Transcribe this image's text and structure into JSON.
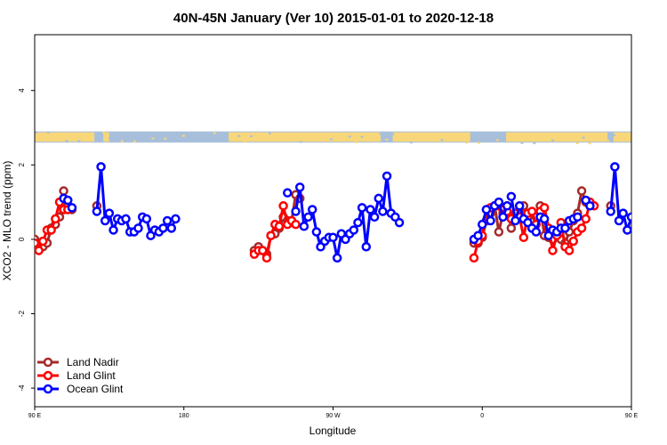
{
  "chart_data": {
    "type": "line",
    "title": "40N-45N January (Ver 10)   2015-01-01 to 2020-12-18",
    "xlabel": "Longitude",
    "ylabel": "XCO2 - MLO trend (ppm)",
    "xlim": [
      90,
      450
    ],
    "ylim": [
      -4.5,
      5.5
    ],
    "x_ticks": [
      {
        "value": 90,
        "label": "90 E"
      },
      {
        "value": 180,
        "label": "180"
      },
      {
        "value": 270,
        "label": "90 W"
      },
      {
        "value": 360,
        "label": "0"
      },
      {
        "value": 450,
        "label": "90 E"
      },
      {
        "value": 540,
        "label": "180"
      }
    ],
    "y_ticks": [
      {
        "value": -4,
        "label": "-4"
      },
      {
        "value": -2,
        "label": "-2"
      },
      {
        "value": 0,
        "label": "0"
      },
      {
        "value": 2,
        "label": "2"
      },
      {
        "value": 4,
        "label": "4"
      }
    ],
    "grid": false,
    "legend_position": "bottom-left",
    "land_strip": {
      "y_range": [
        2.6,
        2.9
      ],
      "ocean_color": "#a7bfdb",
      "land_color": "#f8d77a"
    },
    "series": [
      {
        "name": "Land Nadir",
        "color": "#a52a2a",
        "segments": [
          [
            [
              90,
              0
            ],
            [
              92.5,
              -0.1
            ],
            [
              95,
              -0.2
            ],
            [
              97.5,
              -0.1
            ],
            [
              100,
              0.3
            ],
            [
              102.5,
              0.4
            ],
            [
              105,
              0.6
            ],
            [
              107.5,
              1.3
            ],
            [
              110,
              0.9
            ],
            [
              112.5,
              0.8
            ]
          ],
          [
            [
              127.5,
              0.9
            ]
          ],
          [
            [
              222.5,
              -0.3
            ],
            [
              225,
              -0.2
            ],
            [
              227.5,
              -0.3
            ],
            [
              230,
              -0.4
            ],
            [
              232.5,
              0.1
            ],
            [
              235,
              0.15
            ],
            [
              237.5,
              0.3
            ],
            [
              240,
              0.6
            ],
            [
              242.5,
              0.5
            ],
            [
              245,
              0.5
            ],
            [
              247.5,
              1.2
            ],
            [
              250,
              1.1
            ]
          ],
          [
            [
              355,
              -0.1
            ],
            [
              357.5,
              -0.1
            ],
            [
              360,
              0.05
            ],
            [
              362.5,
              0.5
            ],
            [
              365,
              0.7
            ],
            [
              367.5,
              0.9
            ],
            [
              370,
              0.2
            ],
            [
              372.5,
              0.7
            ],
            [
              375,
              0.9
            ],
            [
              377.5,
              0.3
            ],
            [
              380,
              0.6
            ],
            [
              382.5,
              0.8
            ],
            [
              385,
              0.9
            ],
            [
              387.5,
              0.6
            ],
            [
              390,
              0.3
            ],
            [
              392.5,
              0.6
            ],
            [
              395,
              0.9
            ],
            [
              397.5,
              0.1
            ],
            [
              400,
              0.05
            ],
            [
              402.5,
              0
            ],
            [
              405,
              0.2
            ],
            [
              407.5,
              0
            ],
            [
              410,
              -0.1
            ],
            [
              412.5,
              0.2
            ],
            [
              415,
              0.5
            ],
            [
              417.5,
              0.7
            ],
            [
              420,
              1.3
            ],
            [
              422.5,
              1.0
            ],
            [
              425,
              0.9
            ]
          ],
          [
            [
              437.5,
              0.9
            ]
          ]
        ]
      },
      {
        "name": "Land Glint",
        "color": "#ff0000",
        "segments": [
          [
            [
              90,
              -0.1
            ],
            [
              92.5,
              -0.3
            ],
            [
              95,
              -0.05
            ],
            [
              97.5,
              0.25
            ],
            [
              100,
              0.25
            ],
            [
              102.5,
              0.55
            ],
            [
              105,
              1.0
            ],
            [
              107.5,
              0.8
            ],
            [
              110,
              0.8
            ]
          ],
          [
            [
              222.5,
              -0.4
            ],
            [
              225,
              -0.3
            ],
            [
              227.5,
              -0.3
            ],
            [
              230,
              -0.5
            ],
            [
              232.5,
              0.1
            ],
            [
              235,
              0.4
            ],
            [
              237.5,
              0.35
            ],
            [
              240,
              0.9
            ],
            [
              242.5,
              0.4
            ],
            [
              245,
              0.5
            ],
            [
              247.5,
              0.4
            ]
          ],
          [
            [
              355,
              -0.5
            ],
            [
              357.5,
              -0.05
            ],
            [
              360,
              0.1
            ],
            [
              362.5,
              0.8
            ],
            [
              365,
              0.85
            ],
            [
              367.5,
              0.9
            ],
            [
              370,
              0.9
            ],
            [
              372.5,
              0.8
            ],
            [
              375,
              0.75
            ],
            [
              377.5,
              0.55
            ],
            [
              380,
              0.7
            ],
            [
              382.5,
              0.6
            ],
            [
              385,
              0.05
            ],
            [
              387.5,
              0.7
            ],
            [
              390,
              0.75
            ],
            [
              392.5,
              0.4
            ],
            [
              395,
              0.75
            ],
            [
              397.5,
              0.85
            ],
            [
              400,
              0.3
            ],
            [
              402.5,
              -0.3
            ],
            [
              405,
              0.1
            ],
            [
              407.5,
              0.45
            ],
            [
              410,
              -0.2
            ],
            [
              412.5,
              -0.3
            ],
            [
              415,
              -0.05
            ],
            [
              417.5,
              0.2
            ],
            [
              420,
              0.3
            ],
            [
              422.5,
              0.55
            ],
            [
              425,
              1.0
            ],
            [
              427.5,
              0.9
            ]
          ]
        ]
      },
      {
        "name": "Ocean Glint",
        "color": "#0000ff",
        "segments": [
          [
            [
              107.5,
              1.1
            ],
            [
              110,
              1.05
            ],
            [
              112.5,
              0.85
            ]
          ],
          [
            [
              127.5,
              0.75
            ],
            [
              130,
              1.95
            ],
            [
              132.5,
              0.5
            ],
            [
              135,
              0.7
            ],
            [
              137.5,
              0.25
            ],
            [
              140,
              0.55
            ],
            [
              142.5,
              0.5
            ],
            [
              145,
              0.55
            ],
            [
              147.5,
              0.2
            ],
            [
              150,
              0.2
            ],
            [
              152.5,
              0.3
            ],
            [
              155,
              0.6
            ],
            [
              157.5,
              0.55
            ],
            [
              160,
              0.1
            ],
            [
              162.5,
              0.25
            ],
            [
              165,
              0.2
            ],
            [
              167.5,
              0.3
            ],
            [
              170,
              0.5
            ],
            [
              172.5,
              0.3
            ],
            [
              175,
              0.55
            ]
          ],
          [
            [
              242.5,
              1.25
            ]
          ],
          [
            [
              247.5,
              0.75
            ],
            [
              250,
              1.4
            ],
            [
              252.5,
              0.35
            ],
            [
              255,
              0.6
            ],
            [
              257.5,
              0.8
            ],
            [
              260,
              0.2
            ],
            [
              262.5,
              -0.2
            ],
            [
              265,
              -0.05
            ],
            [
              267.5,
              0.05
            ],
            [
              270,
              0.05
            ],
            [
              272.5,
              -0.5
            ],
            [
              275,
              0.15
            ],
            [
              277.5,
              0
            ],
            [
              280,
              0.15
            ],
            [
              282.5,
              0.25
            ],
            [
              285,
              0.45
            ],
            [
              287.5,
              0.85
            ],
            [
              290,
              -0.2
            ],
            [
              292.5,
              0.8
            ],
            [
              295,
              0.6
            ],
            [
              297.5,
              1.1
            ],
            [
              300,
              0.75
            ],
            [
              302.5,
              1.7
            ],
            [
              305,
              0.7
            ],
            [
              307.5,
              0.6
            ],
            [
              310,
              0.45
            ]
          ],
          [
            [
              355,
              0
            ],
            [
              357.5,
              0.1
            ],
            [
              360,
              0.4
            ],
            [
              362.5,
              0.8
            ],
            [
              365,
              0.5
            ],
            [
              367.5,
              0.9
            ],
            [
              370,
              1.0
            ],
            [
              372.5,
              0.6
            ],
            [
              375,
              0.9
            ]
          ],
          [
            [
              377.5,
              1.15
            ],
            [
              380,
              0.5
            ],
            [
              382.5,
              0.9
            ],
            [
              385,
              0.55
            ],
            [
              387.5,
              0.45
            ],
            [
              390,
              0.3
            ],
            [
              392.5,
              0.2
            ],
            [
              395,
              0.6
            ],
            [
              397.5,
              0.55
            ],
            [
              400,
              0.1
            ],
            [
              402.5,
              0.25
            ],
            [
              405,
              0.2
            ],
            [
              407.5,
              0.3
            ],
            [
              410,
              0.3
            ],
            [
              412.5,
              0.5
            ],
            [
              415,
              0.55
            ],
            [
              417.5,
              0.6
            ]
          ],
          [
            [
              422.5,
              1.05
            ],
            [
              425,
              0.9
            ]
          ],
          [
            [
              437.5,
              0.75
            ],
            [
              440,
              1.95
            ],
            [
              442.5,
              0.5
            ],
            [
              445,
              0.7
            ],
            [
              447.5,
              0.25
            ],
            [
              450,
              0.6
            ],
            [
              452.5,
              0.5
            ],
            [
              455,
              0.55
            ]
          ]
        ]
      }
    ]
  }
}
